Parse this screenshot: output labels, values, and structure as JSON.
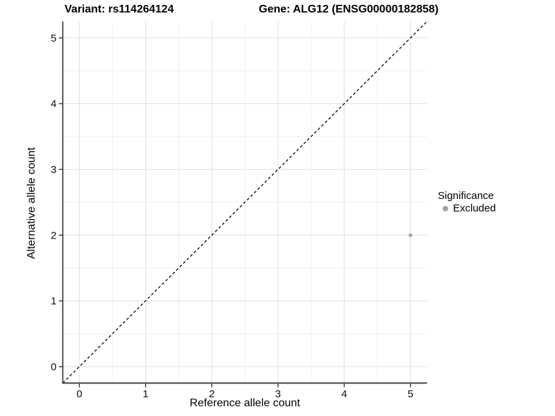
{
  "titles": {
    "left": "Variant: rs114264124",
    "right": "Gene: ALG12 (ENSG00000182858)"
  },
  "chart_data": {
    "type": "scatter",
    "title_left": "Variant: rs114264124",
    "title_right": "Gene: ALG12 (ENSG00000182858)",
    "xlabel": "Reference allele count",
    "ylabel": "Alternative allele count",
    "xlim": [
      -0.25,
      5.25
    ],
    "ylim": [
      -0.25,
      5.25
    ],
    "xticks": [
      0,
      1,
      2,
      3,
      4,
      5
    ],
    "yticks": [
      0,
      1,
      2,
      3,
      4,
      5
    ],
    "minor_xticks": [
      0.5,
      1.5,
      2.5,
      3.5,
      4.5
    ],
    "minor_yticks": [
      0.5,
      1.5,
      2.5,
      3.5,
      4.5
    ],
    "grid": "major and minor, light gray on white",
    "series": [
      {
        "name": "Excluded",
        "points": [
          {
            "x": 5,
            "y": 2
          }
        ],
        "color": "#a6a6a6"
      }
    ],
    "abline": {
      "slope": 1,
      "intercept": 0,
      "style": "dashed",
      "color": "#000000"
    },
    "legend": {
      "position": "right",
      "title": "Significance",
      "items": [
        {
          "label": "Excluded",
          "color": "#a3a3a3"
        }
      ]
    }
  },
  "colors": {
    "background": "#ffffff",
    "grid_major": "#e4e4e4",
    "grid_minor": "#eeeeee",
    "axis_line": "#424242",
    "tick_mark": "#333333",
    "tick_label": "#0d0d0d",
    "point": "#a6a6a6",
    "dashed_line": "#000000"
  }
}
